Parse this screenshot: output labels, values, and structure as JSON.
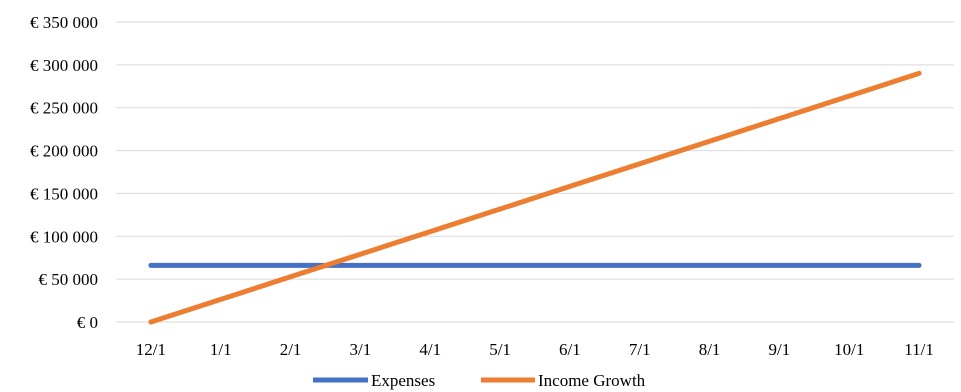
{
  "chart_data": {
    "type": "line",
    "categories": [
      "12/1",
      "1/1",
      "2/1",
      "3/1",
      "4/1",
      "5/1",
      "6/1",
      "7/1",
      "8/1",
      "9/1",
      "10/1",
      "11/1"
    ],
    "y_tick_labels": [
      "€ 0",
      "€ 50 000",
      "€ 100 000",
      "€ 150 000",
      "€ 200 000",
      "€ 250 000",
      "€ 300 000",
      "€ 350 000"
    ],
    "ylim": [
      0,
      350000
    ],
    "y_tick_step": 50000,
    "grid": true,
    "legend_position": "bottom",
    "series": [
      {
        "name": "Expenses",
        "color": "#4472C4",
        "values": [
          66000,
          66000,
          66000,
          66000,
          66000,
          66000,
          66000,
          66000,
          66000,
          66000,
          66000,
          66000
        ]
      },
      {
        "name": "Income Growth",
        "color": "#ED7D31",
        "values": [
          0,
          26364,
          52727,
          79091,
          105455,
          131818,
          158182,
          184545,
          210909,
          237273,
          263636,
          290000
        ]
      }
    ]
  }
}
